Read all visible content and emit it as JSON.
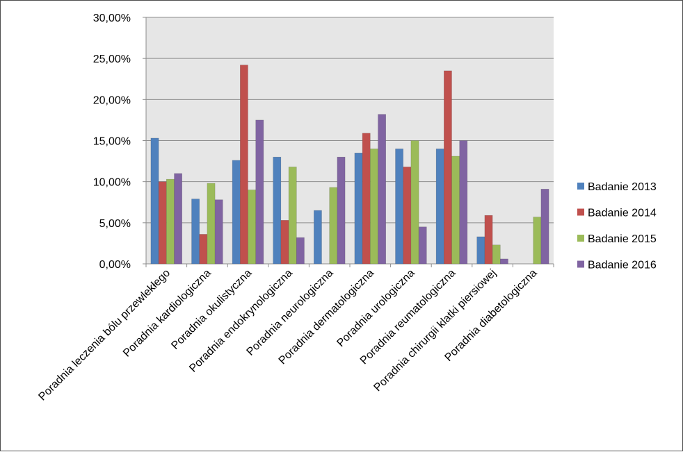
{
  "chart_data": {
    "type": "bar",
    "categories": [
      "Poradnia leczenia bólu przewlekłego",
      "Poradnia kardiologiczna",
      "Poradnia okulistyczna",
      "Poradnia endokrynologiczna",
      "Poradnia neurologiczna",
      "Poradnia dermatologiczna",
      "Poradnia urologiczna",
      "Poradnia reumatologiczna",
      "Poradnia chirurgii klatki piersiowej",
      "Poradnia diabetologiczna"
    ],
    "series": [
      {
        "name": "Badanie 2013",
        "color": "#4f81bd",
        "values": [
          15.3,
          7.9,
          12.6,
          13.0,
          6.5,
          13.5,
          14.0,
          14.0,
          3.3,
          0
        ]
      },
      {
        "name": "Badanie 2014",
        "color": "#c0504d",
        "values": [
          10.0,
          3.6,
          24.2,
          5.3,
          0,
          15.9,
          11.8,
          23.5,
          5.9,
          0
        ]
      },
      {
        "name": "Badanie 2015",
        "color": "#9bbb59",
        "values": [
          10.3,
          9.8,
          9.0,
          11.8,
          9.3,
          14.0,
          15.0,
          13.1,
          2.3,
          5.7
        ]
      },
      {
        "name": "Badanie 2016",
        "color": "#8064a2",
        "values": [
          11.0,
          7.8,
          17.5,
          3.2,
          13.0,
          18.2,
          4.5,
          15.0,
          0.6,
          9.1
        ]
      }
    ],
    "ylim": [
      0,
      30
    ],
    "yticks": [
      "0,00%",
      "5,00%",
      "10,00%",
      "15,00%",
      "20,00%",
      "25,00%",
      "30,00%"
    ],
    "title": "",
    "xlabel": "",
    "ylabel": "",
    "grid": true,
    "legend": "right"
  }
}
